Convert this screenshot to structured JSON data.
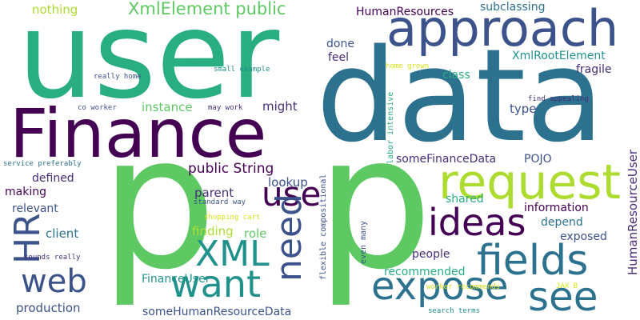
{
  "palette": {
    "background": "#ffffff",
    "dark_purple": "#440154",
    "indigo": "#472d7b",
    "slate_blue": "#3b528b",
    "steel_blue": "#2c728e",
    "teal": "#21918c",
    "green_teal": "#28ae80",
    "green": "#5ec962",
    "lime": "#addc30",
    "yellow": "#d5e21a"
  },
  "words": [
    {
      "text": "user"
    },
    {
      "text": "data"
    },
    {
      "text": "p"
    },
    {
      "text": "p"
    },
    {
      "text": "Finance"
    },
    {
      "text": "approach"
    },
    {
      "text": "request"
    },
    {
      "text": "ideas"
    },
    {
      "text": "fields"
    },
    {
      "text": "expose"
    },
    {
      "text": "see"
    },
    {
      "text": "want"
    },
    {
      "text": "web"
    },
    {
      "text": "XML"
    },
    {
      "text": "use"
    },
    {
      "text": "need"
    },
    {
      "text": "HR"
    },
    {
      "text": "XmlElement public"
    },
    {
      "text": "nothing"
    },
    {
      "text": "HumanResources"
    },
    {
      "text": "subclassing"
    },
    {
      "text": "done"
    },
    {
      "text": "feel"
    },
    {
      "text": "XmlRootElement"
    },
    {
      "text": "class"
    },
    {
      "text": "fragile"
    },
    {
      "text": "instance"
    },
    {
      "text": "might"
    },
    {
      "text": "type"
    },
    {
      "text": "public String"
    },
    {
      "text": "lookup"
    },
    {
      "text": "parent"
    },
    {
      "text": "someFinanceData"
    },
    {
      "text": "POJO"
    },
    {
      "text": "HumanResourceUser"
    },
    {
      "text": "defined"
    },
    {
      "text": "making"
    },
    {
      "text": "relevant"
    },
    {
      "text": "client"
    },
    {
      "text": "finding"
    },
    {
      "text": "role"
    },
    {
      "text": "shared"
    },
    {
      "text": "information"
    },
    {
      "text": "depend"
    },
    {
      "text": "exposed"
    },
    {
      "text": "people"
    },
    {
      "text": "recommended"
    },
    {
      "text": "FinanceUser"
    },
    {
      "text": "production"
    },
    {
      "text": "someHumanResourceData"
    },
    {
      "text": "really home"
    },
    {
      "text": "co worker"
    },
    {
      "text": "small example"
    },
    {
      "text": "home grown"
    },
    {
      "text": "may work"
    },
    {
      "text": "find appealing"
    },
    {
      "text": "labor intensive"
    },
    {
      "text": "service preferably"
    },
    {
      "text": "standard way"
    },
    {
      "text": "flexible compositional"
    },
    {
      "text": "shopping cart"
    },
    {
      "text": "sounds really"
    },
    {
      "text": "even many"
    },
    {
      "text": "worker recommends"
    },
    {
      "text": "JAX B"
    },
    {
      "text": "search terms"
    }
  ]
}
